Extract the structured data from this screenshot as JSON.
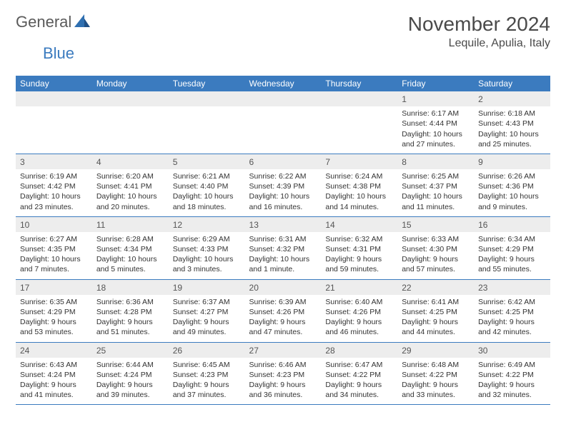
{
  "logo": {
    "word1": "General",
    "word2": "Blue"
  },
  "title": "November 2024",
  "location": "Lequile, Apulia, Italy",
  "colors": {
    "header_bg": "#3b7bbf",
    "header_text": "#ffffff",
    "row_border": "#3b7bbf",
    "shaded_bg": "#ededed",
    "text": "#333333",
    "logo_gray": "#5a5a5a",
    "logo_blue": "#3b7bbf"
  },
  "typography": {
    "title_fontsize": 28,
    "location_fontsize": 16,
    "header_fontsize": 12,
    "cell_fontsize": 10.5,
    "daynum_fontsize": 12
  },
  "day_headers": [
    "Sunday",
    "Monday",
    "Tuesday",
    "Wednesday",
    "Thursday",
    "Friday",
    "Saturday"
  ],
  "weeks": [
    [
      {
        "n": "",
        "sr": "",
        "ss": "",
        "dl": ""
      },
      {
        "n": "",
        "sr": "",
        "ss": "",
        "dl": ""
      },
      {
        "n": "",
        "sr": "",
        "ss": "",
        "dl": ""
      },
      {
        "n": "",
        "sr": "",
        "ss": "",
        "dl": ""
      },
      {
        "n": "",
        "sr": "",
        "ss": "",
        "dl": ""
      },
      {
        "n": "1",
        "sr": "Sunrise: 6:17 AM",
        "ss": "Sunset: 4:44 PM",
        "dl": "Daylight: 10 hours and 27 minutes."
      },
      {
        "n": "2",
        "sr": "Sunrise: 6:18 AM",
        "ss": "Sunset: 4:43 PM",
        "dl": "Daylight: 10 hours and 25 minutes."
      }
    ],
    [
      {
        "n": "3",
        "sr": "Sunrise: 6:19 AM",
        "ss": "Sunset: 4:42 PM",
        "dl": "Daylight: 10 hours and 23 minutes."
      },
      {
        "n": "4",
        "sr": "Sunrise: 6:20 AM",
        "ss": "Sunset: 4:41 PM",
        "dl": "Daylight: 10 hours and 20 minutes."
      },
      {
        "n": "5",
        "sr": "Sunrise: 6:21 AM",
        "ss": "Sunset: 4:40 PM",
        "dl": "Daylight: 10 hours and 18 minutes."
      },
      {
        "n": "6",
        "sr": "Sunrise: 6:22 AM",
        "ss": "Sunset: 4:39 PM",
        "dl": "Daylight: 10 hours and 16 minutes."
      },
      {
        "n": "7",
        "sr": "Sunrise: 6:24 AM",
        "ss": "Sunset: 4:38 PM",
        "dl": "Daylight: 10 hours and 14 minutes."
      },
      {
        "n": "8",
        "sr": "Sunrise: 6:25 AM",
        "ss": "Sunset: 4:37 PM",
        "dl": "Daylight: 10 hours and 11 minutes."
      },
      {
        "n": "9",
        "sr": "Sunrise: 6:26 AM",
        "ss": "Sunset: 4:36 PM",
        "dl": "Daylight: 10 hours and 9 minutes."
      }
    ],
    [
      {
        "n": "10",
        "sr": "Sunrise: 6:27 AM",
        "ss": "Sunset: 4:35 PM",
        "dl": "Daylight: 10 hours and 7 minutes."
      },
      {
        "n": "11",
        "sr": "Sunrise: 6:28 AM",
        "ss": "Sunset: 4:34 PM",
        "dl": "Daylight: 10 hours and 5 minutes."
      },
      {
        "n": "12",
        "sr": "Sunrise: 6:29 AM",
        "ss": "Sunset: 4:33 PM",
        "dl": "Daylight: 10 hours and 3 minutes."
      },
      {
        "n": "13",
        "sr": "Sunrise: 6:31 AM",
        "ss": "Sunset: 4:32 PM",
        "dl": "Daylight: 10 hours and 1 minute."
      },
      {
        "n": "14",
        "sr": "Sunrise: 6:32 AM",
        "ss": "Sunset: 4:31 PM",
        "dl": "Daylight: 9 hours and 59 minutes."
      },
      {
        "n": "15",
        "sr": "Sunrise: 6:33 AM",
        "ss": "Sunset: 4:30 PM",
        "dl": "Daylight: 9 hours and 57 minutes."
      },
      {
        "n": "16",
        "sr": "Sunrise: 6:34 AM",
        "ss": "Sunset: 4:29 PM",
        "dl": "Daylight: 9 hours and 55 minutes."
      }
    ],
    [
      {
        "n": "17",
        "sr": "Sunrise: 6:35 AM",
        "ss": "Sunset: 4:29 PM",
        "dl": "Daylight: 9 hours and 53 minutes."
      },
      {
        "n": "18",
        "sr": "Sunrise: 6:36 AM",
        "ss": "Sunset: 4:28 PM",
        "dl": "Daylight: 9 hours and 51 minutes."
      },
      {
        "n": "19",
        "sr": "Sunrise: 6:37 AM",
        "ss": "Sunset: 4:27 PM",
        "dl": "Daylight: 9 hours and 49 minutes."
      },
      {
        "n": "20",
        "sr": "Sunrise: 6:39 AM",
        "ss": "Sunset: 4:26 PM",
        "dl": "Daylight: 9 hours and 47 minutes."
      },
      {
        "n": "21",
        "sr": "Sunrise: 6:40 AM",
        "ss": "Sunset: 4:26 PM",
        "dl": "Daylight: 9 hours and 46 minutes."
      },
      {
        "n": "22",
        "sr": "Sunrise: 6:41 AM",
        "ss": "Sunset: 4:25 PM",
        "dl": "Daylight: 9 hours and 44 minutes."
      },
      {
        "n": "23",
        "sr": "Sunrise: 6:42 AM",
        "ss": "Sunset: 4:25 PM",
        "dl": "Daylight: 9 hours and 42 minutes."
      }
    ],
    [
      {
        "n": "24",
        "sr": "Sunrise: 6:43 AM",
        "ss": "Sunset: 4:24 PM",
        "dl": "Daylight: 9 hours and 41 minutes."
      },
      {
        "n": "25",
        "sr": "Sunrise: 6:44 AM",
        "ss": "Sunset: 4:24 PM",
        "dl": "Daylight: 9 hours and 39 minutes."
      },
      {
        "n": "26",
        "sr": "Sunrise: 6:45 AM",
        "ss": "Sunset: 4:23 PM",
        "dl": "Daylight: 9 hours and 37 minutes."
      },
      {
        "n": "27",
        "sr": "Sunrise: 6:46 AM",
        "ss": "Sunset: 4:23 PM",
        "dl": "Daylight: 9 hours and 36 minutes."
      },
      {
        "n": "28",
        "sr": "Sunrise: 6:47 AM",
        "ss": "Sunset: 4:22 PM",
        "dl": "Daylight: 9 hours and 34 minutes."
      },
      {
        "n": "29",
        "sr": "Sunrise: 6:48 AM",
        "ss": "Sunset: 4:22 PM",
        "dl": "Daylight: 9 hours and 33 minutes."
      },
      {
        "n": "30",
        "sr": "Sunrise: 6:49 AM",
        "ss": "Sunset: 4:22 PM",
        "dl": "Daylight: 9 hours and 32 minutes."
      }
    ]
  ]
}
